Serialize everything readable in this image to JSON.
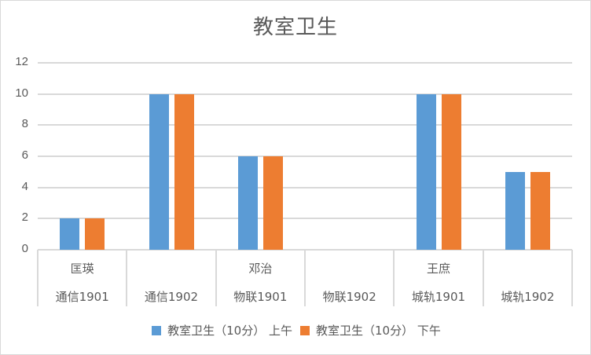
{
  "chart_data": {
    "type": "bar",
    "title": "教室卫生",
    "categories": [
      {
        "top": "匡瑛",
        "bottom": "通信1901"
      },
      {
        "top": "",
        "bottom": "通信1902"
      },
      {
        "top": "邓治",
        "bottom": "物联1901"
      },
      {
        "top": "",
        "bottom": "物联1902"
      },
      {
        "top": "王庶",
        "bottom": "城轨1901"
      },
      {
        "top": "",
        "bottom": "城轨1902"
      }
    ],
    "series": [
      {
        "name": "教室卫生（10分） 上午",
        "color": "#5b9bd5",
        "values": [
          2,
          10,
          6,
          0,
          10,
          5
        ]
      },
      {
        "name": "教室卫生（10分） 下午",
        "color": "#ed7d31",
        "values": [
          2,
          10,
          6,
          0,
          10,
          5
        ]
      }
    ],
    "xlabel": "",
    "ylabel": "",
    "ylim": [
      0,
      12
    ],
    "yticks": [
      "0",
      "2",
      "4",
      "6",
      "8",
      "10",
      "12"
    ],
    "grid": true,
    "legend_position": "bottom"
  }
}
